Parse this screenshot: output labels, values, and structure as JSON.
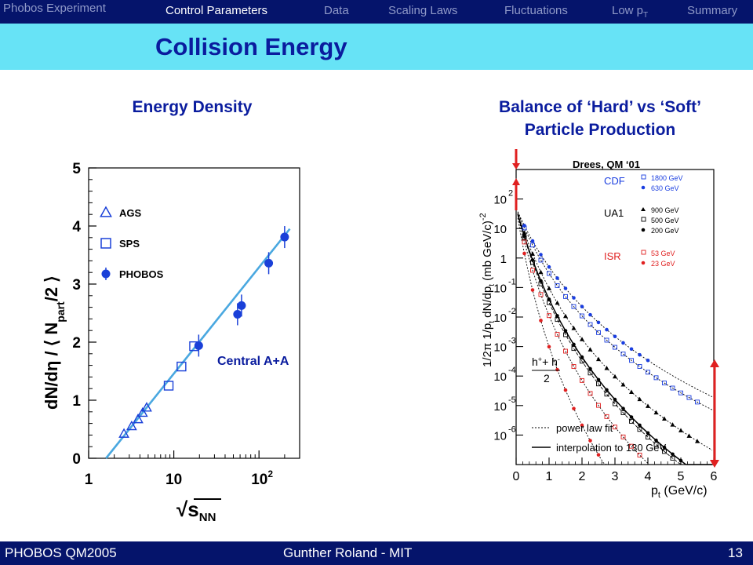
{
  "nav": {
    "brand": "Phobos Experiment",
    "tabs": [
      "Control Parameters",
      "Data",
      "Scaling Laws",
      "Fluctuations",
      "Low p",
      "Summary"
    ],
    "low_pt_sub": "T",
    "active_tab": "Control Parameters"
  },
  "page": {
    "title": "Collision Energy"
  },
  "left_panel": {
    "heading": "Energy Density",
    "annotation": "Central A+A",
    "chart_data": {
      "type": "scatter",
      "x_scale": "log",
      "xlim": [
        1,
        300
      ],
      "ylim": [
        0,
        5
      ],
      "x_ticks": [
        "1",
        "10",
        "10",
        "2"
      ],
      "y_ticks": [
        "0",
        "1",
        "2",
        "3",
        "4",
        "5"
      ],
      "ylabel_parts": [
        "dN/d",
        "η",
        " / ⟨ N",
        "part",
        "/2 ⟩"
      ],
      "xlabel_parts": [
        "√",
        "s",
        "NN"
      ],
      "legend": [
        "AGS",
        "SPS",
        "PHOBOS"
      ],
      "series": [
        {
          "name": "AGS",
          "x": [
            2.6,
            3.2,
            3.8,
            4.3,
            4.8
          ],
          "y": [
            0.42,
            0.55,
            0.67,
            0.78,
            0.87
          ]
        },
        {
          "name": "SPS",
          "x": [
            8.7,
            12.3,
            17.3
          ],
          "y": [
            1.25,
            1.58,
            1.93
          ]
        },
        {
          "name": "PHOBOS",
          "x": [
            19.6,
            56,
            62.4,
            130,
            200
          ],
          "y": [
            1.94,
            2.48,
            2.63,
            3.36,
            3.81
          ]
        }
      ],
      "fit_line": {
        "x": [
          1.6,
          230
        ],
        "y": [
          0,
          3.95
        ]
      },
      "colors": {
        "data": "#1a40d8",
        "fit": "#4aa8e0",
        "axis": "#000000",
        "annotation": "#0a1c9e"
      }
    }
  },
  "right_panel": {
    "heading_line1": "Balance of ‘Hard’ vs ‘Soft’",
    "heading_line2": "Particle Production",
    "ref": "Drees, QM ‘01",
    "chart_data": {
      "type": "scatter",
      "y_scale": "log",
      "xlim": [
        0,
        6
      ],
      "ylim_exp": [
        -7,
        3
      ],
      "x_ticks": [
        "0",
        "1",
        "2",
        "3",
        "4",
        "5",
        "6"
      ],
      "y_tick_base": "10",
      "y_tick_exps": [
        "2",
        "",
        "",
        "-1",
        "-2",
        "-3",
        "-4",
        "-5",
        "-6"
      ],
      "ylabel": "1/2π 1/p t dN/dp t (mb GeV/c) -2",
      "xlabel": "p t (GeV/c)",
      "formula": {
        "num": "h + + h -",
        "den": "2"
      },
      "legend_groups": [
        {
          "label": "CDF",
          "color": "#1a3ee0",
          "entries": [
            "1800 GeV",
            "630 GeV"
          ]
        },
        {
          "label": "UA1",
          "color": "#000000",
          "entries": [
            "900 GeV",
            "500 GeV",
            "200 GeV"
          ]
        },
        {
          "label": "ISR",
          "color": "#e02020",
          "entries": [
            "53 GeV",
            "23 GeV"
          ]
        }
      ],
      "line_legend": [
        "power law fit",
        "interpolation to 130 GeV"
      ],
      "colors": {
        "cdf": "#1a3ee0",
        "ua1": "#000000",
        "isr": "#e02020",
        "arrow": "#e02020"
      }
    }
  },
  "footer": {
    "left": "PHOBOS QM2005",
    "center": "Gunther Roland - MIT",
    "page_number": "13"
  }
}
